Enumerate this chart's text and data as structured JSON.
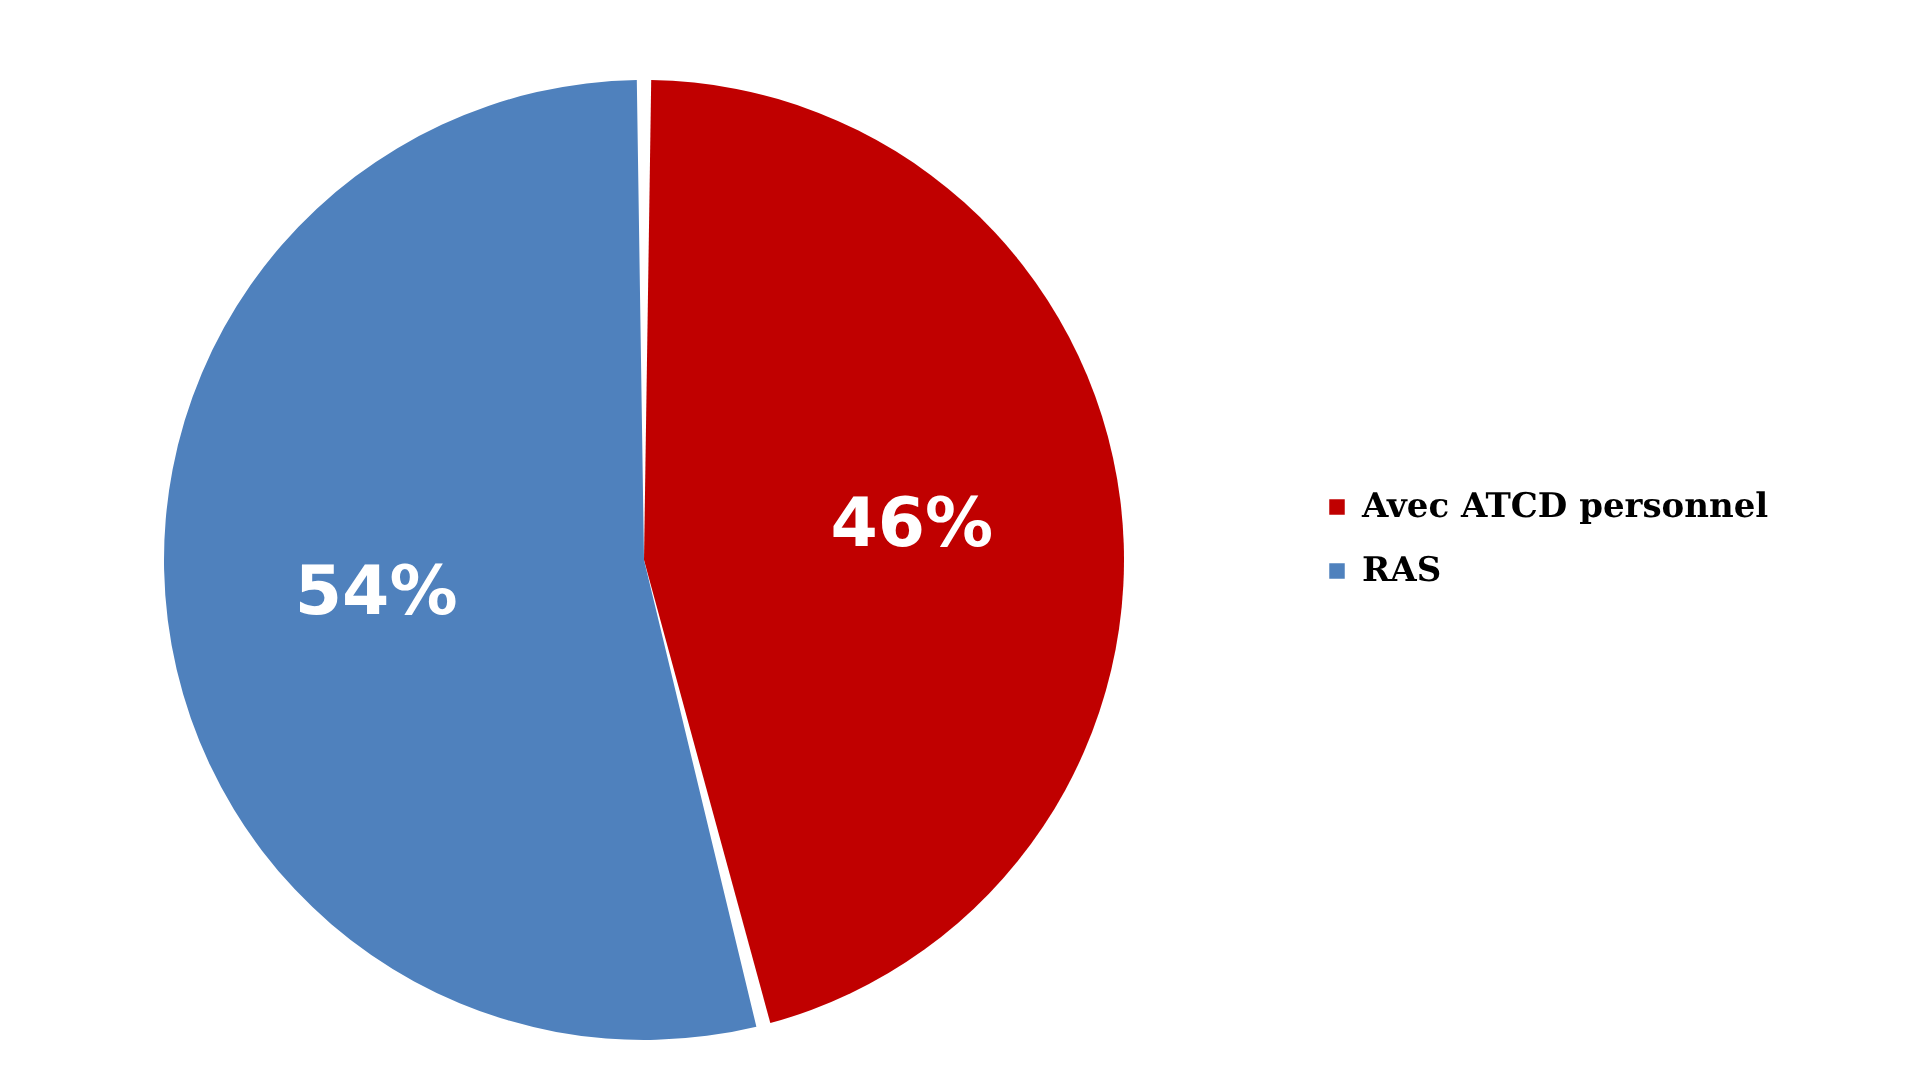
{
  "chart_data": {
    "type": "pie",
    "categories": [
      "Avec ATCD personnel",
      "RAS"
    ],
    "values": [
      46,
      54
    ],
    "value_labels": [
      "46%",
      "54%"
    ],
    "colors": [
      "#c00000",
      "#4f81bd"
    ],
    "legend": "right"
  }
}
